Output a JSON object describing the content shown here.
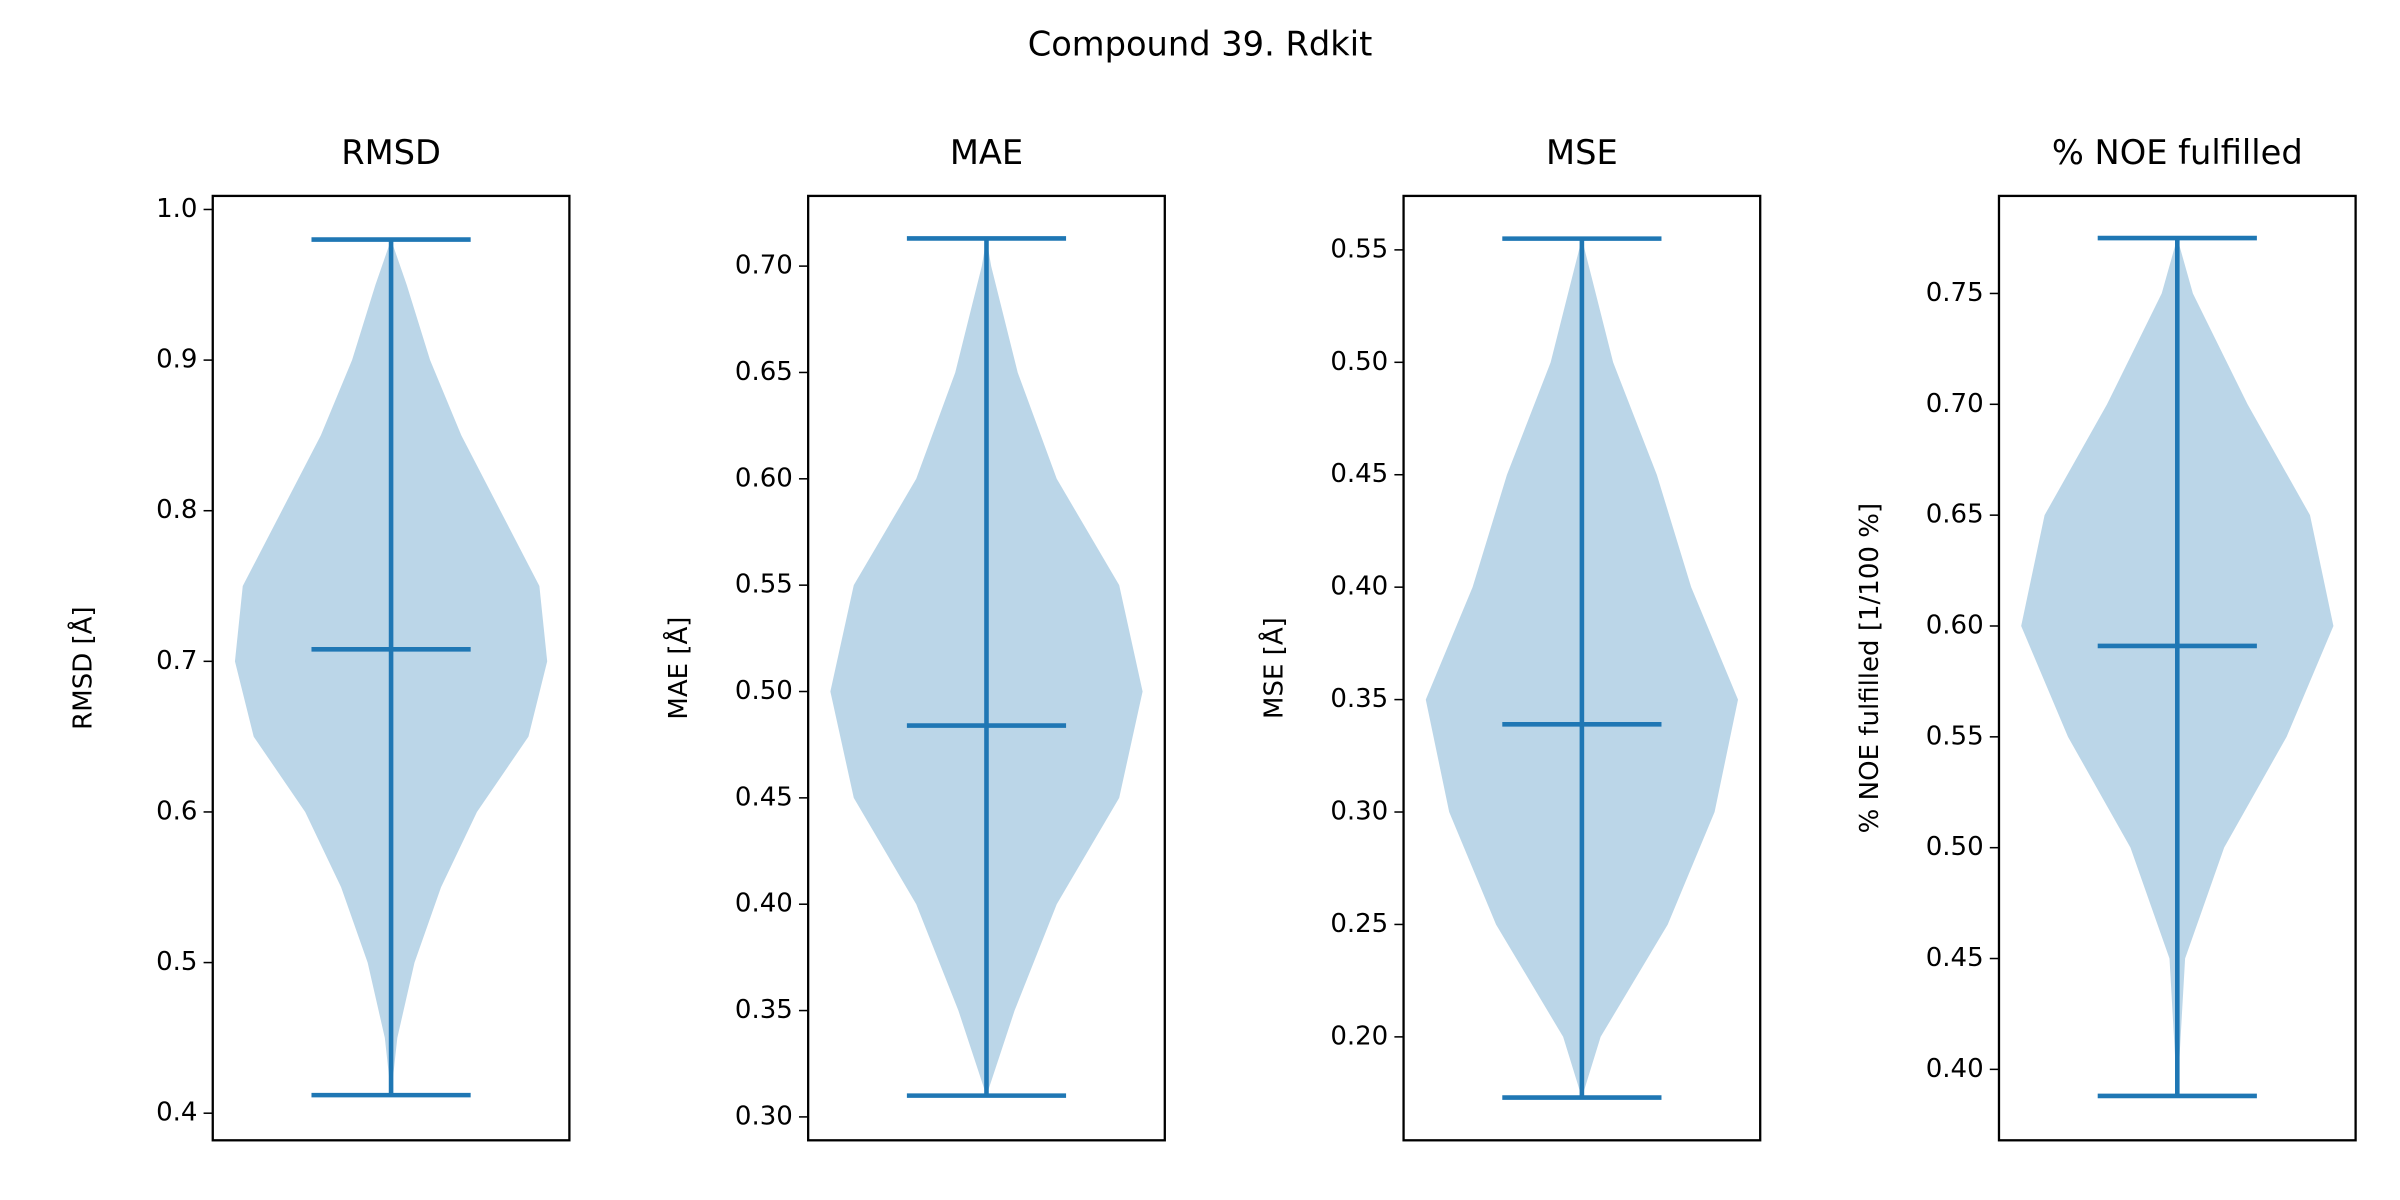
{
  "chart_data": [
    {
      "type": "violin",
      "suptitle": "Compound 39. Rdkit",
      "title": "RMSD",
      "ylabel": "RMSD [Å]",
      "color": "#1f77b4",
      "ylim": [
        0.382,
        1.009
      ],
      "yticks": [
        0.4,
        0.5,
        0.6,
        0.7,
        0.8,
        0.9,
        {
          "value": 1.0,
          "label": "1.0"
        }
      ],
      "min": 0.412,
      "max": 0.98,
      "mean": 0.708,
      "density_y": [
        0.412,
        0.45,
        0.5,
        0.55,
        0.6,
        0.65,
        0.7,
        0.75,
        0.8,
        0.85,
        0.9,
        0.95,
        0.98
      ],
      "density": [
        0,
        0.04,
        0.15,
        0.32,
        0.55,
        0.88,
        1.0,
        0.95,
        0.7,
        0.45,
        0.25,
        0.1,
        0
      ]
    },
    {
      "type": "violin",
      "title": "MAE",
      "ylabel": "MAE [Å]",
      "color": "#1f77b4",
      "ylim": [
        0.289,
        0.733
      ],
      "yticks": [
        {
          "value": 0.3,
          "label": "0.30"
        },
        0.35,
        {
          "value": 0.4,
          "label": "0.40"
        },
        0.45,
        {
          "value": 0.5,
          "label": "0.50"
        },
        0.55,
        {
          "value": 0.6,
          "label": "0.60"
        },
        0.65,
        {
          "value": 0.7,
          "label": "0.70"
        }
      ],
      "min": 0.31,
      "max": 0.713,
      "mean": 0.484,
      "density_y": [
        0.31,
        0.35,
        0.4,
        0.45,
        0.5,
        0.55,
        0.6,
        0.65,
        0.7,
        0.713
      ],
      "density": [
        0,
        0.18,
        0.45,
        0.85,
        1.0,
        0.85,
        0.45,
        0.2,
        0.03,
        0
      ]
    },
    {
      "type": "violin",
      "title": "MSE",
      "ylabel": "MSE [Å]",
      "color": "#1f77b4",
      "ylim": [
        0.154,
        0.574
      ],
      "yticks": [
        {
          "value": 0.2,
          "label": "0.20"
        },
        0.25,
        {
          "value": 0.3,
          "label": "0.30"
        },
        0.35,
        {
          "value": 0.4,
          "label": "0.40"
        },
        0.45,
        {
          "value": 0.5,
          "label": "0.50"
        },
        0.55
      ],
      "min": 0.173,
      "max": 0.555,
      "mean": 0.339,
      "density_y": [
        0.173,
        0.2,
        0.25,
        0.3,
        0.35,
        0.4,
        0.45,
        0.5,
        0.555
      ],
      "density": [
        0,
        0.12,
        0.55,
        0.85,
        1.0,
        0.7,
        0.48,
        0.2,
        0
      ]
    },
    {
      "type": "violin",
      "title": "% NOE fulfilled",
      "ylabel": "% NOE fulfilled [1/100 %]",
      "color": "#1f77b4",
      "ylim": [
        0.368,
        0.794
      ],
      "yticks": [
        {
          "value": 0.4,
          "label": "0.40"
        },
        0.45,
        {
          "value": 0.5,
          "label": "0.50"
        },
        0.55,
        {
          "value": 0.6,
          "label": "0.60"
        },
        0.65,
        {
          "value": 0.7,
          "label": "0.70"
        },
        0.75
      ],
      "min": 0.388,
      "max": 0.775,
      "mean": 0.591,
      "density_y": [
        0.388,
        0.45,
        0.5,
        0.55,
        0.6,
        0.65,
        0.7,
        0.75,
        0.775
      ],
      "density": [
        0,
        0.05,
        0.3,
        0.7,
        1.0,
        0.85,
        0.45,
        0.1,
        0
      ]
    }
  ]
}
